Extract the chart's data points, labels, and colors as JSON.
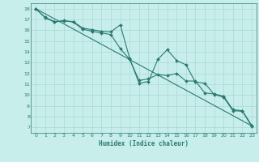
{
  "xlabel": "Humidex (Indice chaleur)",
  "background_color": "#c8eeec",
  "grid_color": "#a8d8d5",
  "line_color": "#2a7a72",
  "xlim": [
    -0.5,
    23.5
  ],
  "ylim": [
    6.5,
    18.5
  ],
  "xticks": [
    0,
    1,
    2,
    3,
    4,
    5,
    6,
    7,
    8,
    9,
    10,
    11,
    12,
    13,
    14,
    15,
    16,
    17,
    18,
    19,
    20,
    21,
    22,
    23
  ],
  "yticks": [
    7,
    8,
    9,
    10,
    11,
    12,
    13,
    14,
    15,
    16,
    17,
    18
  ],
  "series1_x": [
    0,
    1,
    2,
    3,
    4,
    5,
    6,
    7,
    8,
    9,
    10,
    11,
    12,
    13,
    14,
    15,
    16,
    17,
    18,
    19,
    20,
    21,
    22,
    23
  ],
  "series1_y": [
    18.0,
    17.2,
    16.8,
    16.85,
    16.8,
    16.2,
    16.05,
    15.9,
    15.85,
    16.5,
    13.4,
    11.1,
    11.25,
    13.3,
    14.2,
    13.2,
    12.8,
    11.2,
    11.1,
    10.05,
    9.8,
    8.55,
    8.5,
    7.1
  ],
  "series2_x": [
    0,
    1,
    2,
    3,
    4,
    5,
    6,
    7,
    8,
    9,
    10,
    11,
    12,
    13,
    14,
    15,
    16,
    17,
    18,
    19,
    20,
    21,
    22,
    23
  ],
  "series2_y": [
    18.0,
    17.15,
    16.75,
    16.9,
    16.75,
    16.1,
    15.9,
    15.75,
    15.6,
    14.3,
    13.3,
    11.35,
    11.5,
    11.9,
    11.8,
    12.0,
    11.3,
    11.3,
    10.2,
    10.1,
    9.9,
    8.65,
    8.55,
    7.2
  ],
  "series3_x": [
    0,
    23
  ],
  "series3_y": [
    18.0,
    7.15
  ]
}
